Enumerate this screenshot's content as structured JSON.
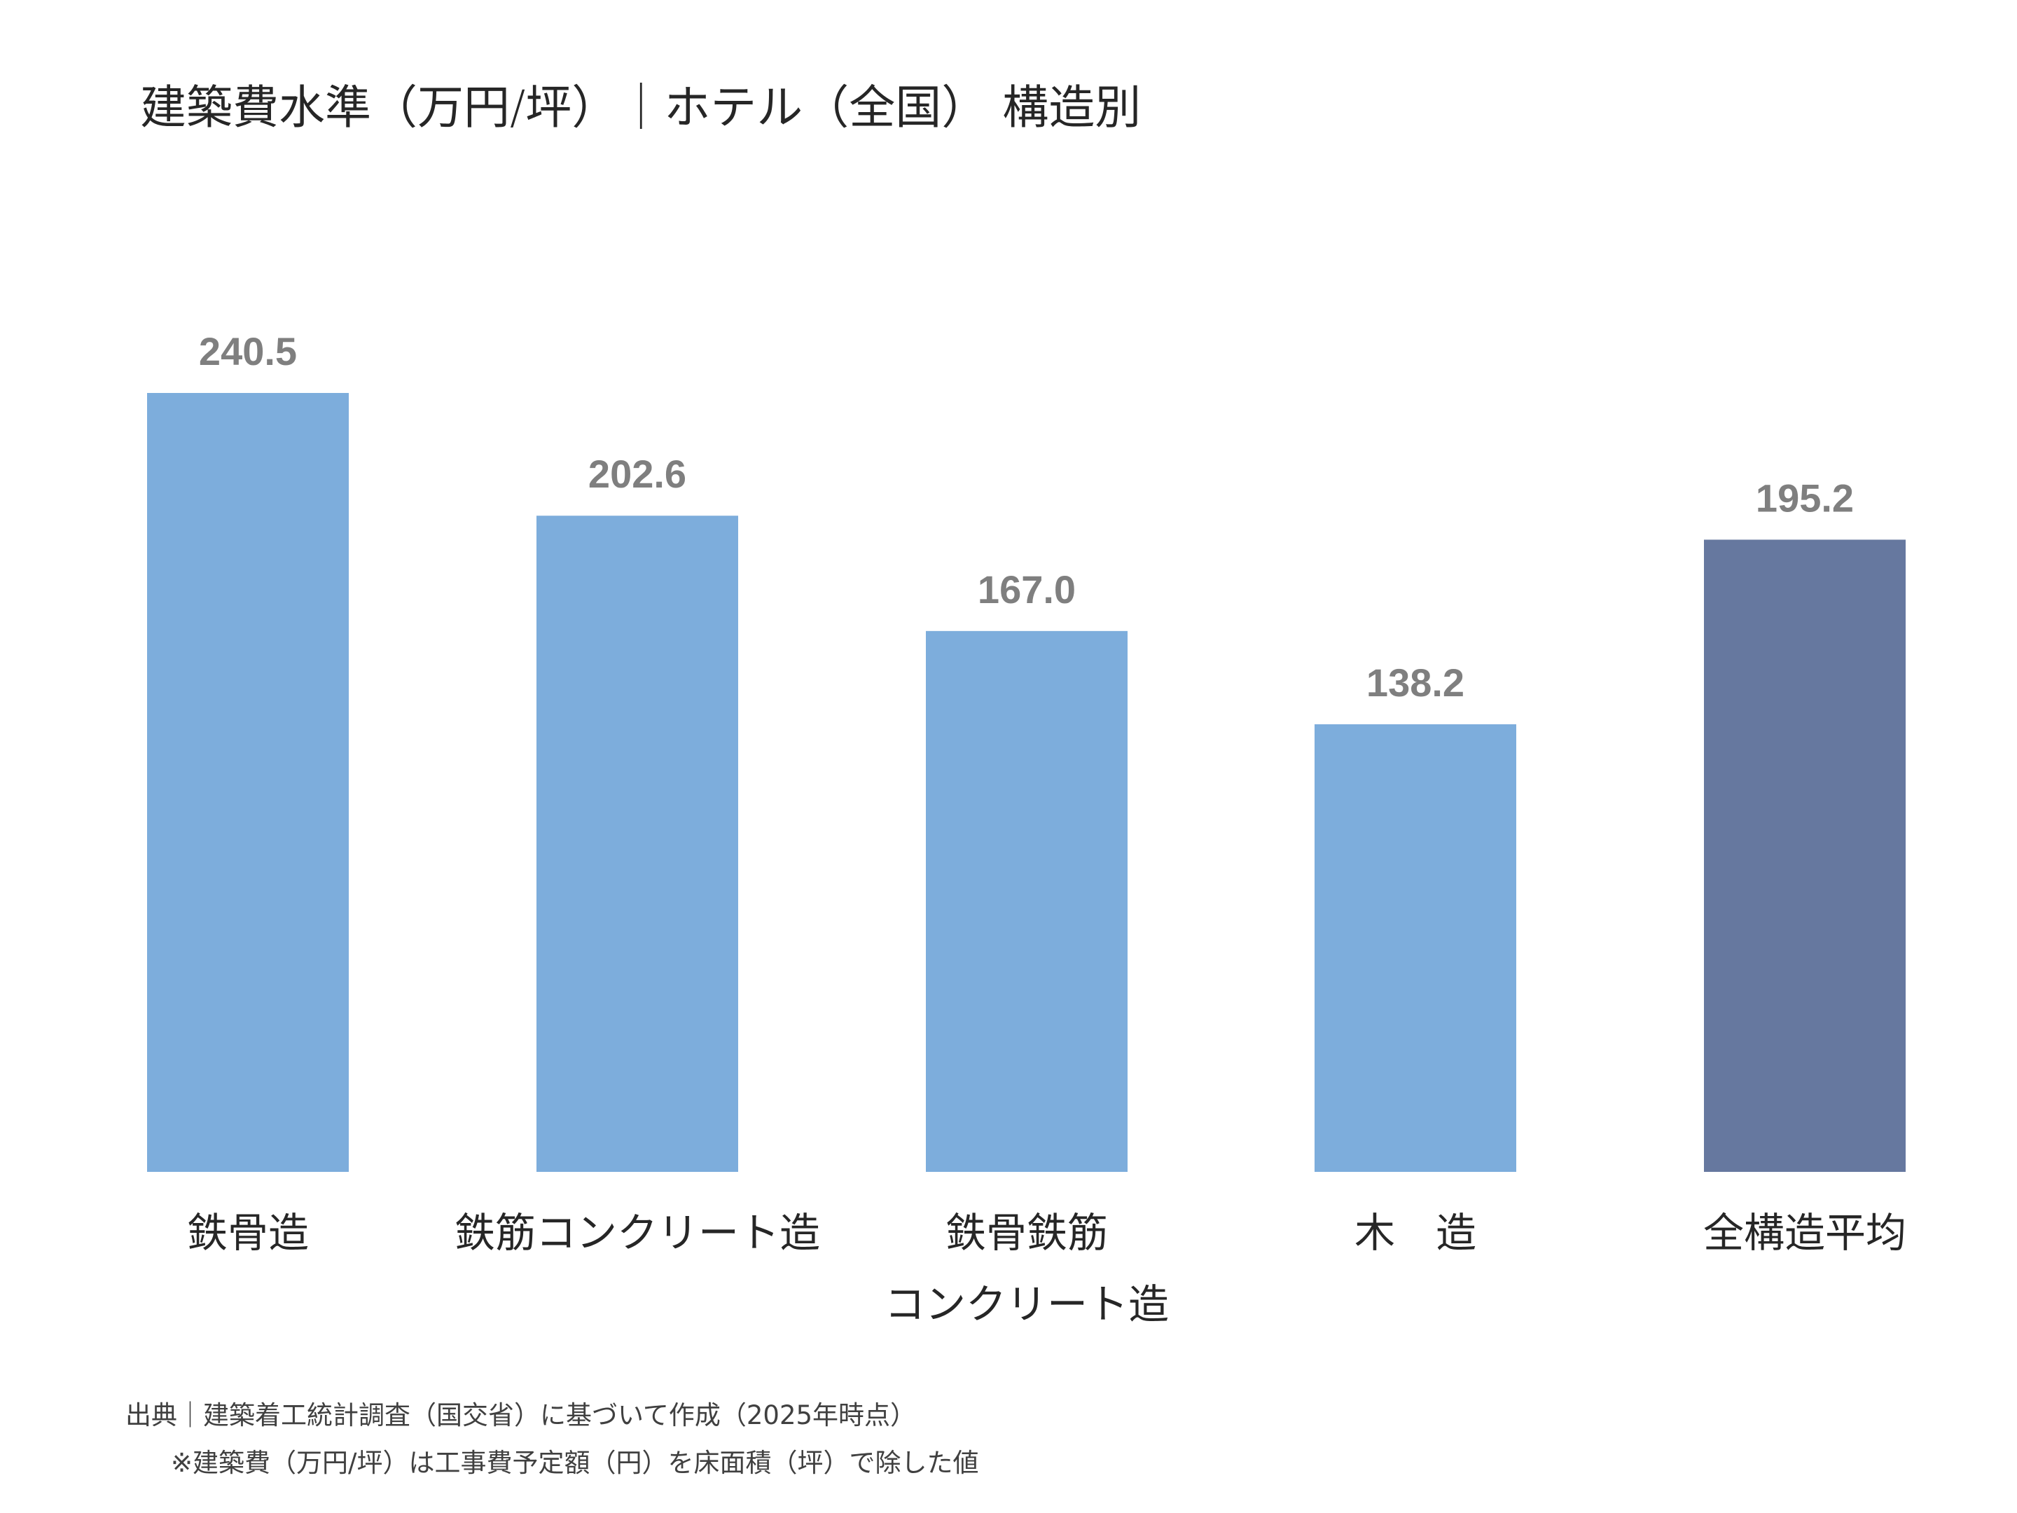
{
  "title": "建築費水準（万円/坪）｜ホテル（全国） 構造別",
  "chart_data": {
    "type": "bar",
    "title": "建築費水準（万円/坪）｜ホテル（全国） 構造別",
    "categories": [
      [
        "鉄骨造"
      ],
      [
        "鉄筋コンクリート造"
      ],
      [
        "鉄骨鉄筋",
        "コンクリート造"
      ],
      [
        "木　造"
      ],
      [
        "全構造平均"
      ]
    ],
    "values": [
      240.5,
      202.6,
      167.0,
      138.2,
      195.2
    ],
    "value_labels": [
      "240.5",
      "202.6",
      "167.0",
      "138.2",
      "195.2"
    ],
    "colors": [
      "#7DADDC",
      "#7DADDC",
      "#7DADDC",
      "#7DADDC",
      "#66789F"
    ],
    "label_color": "#7F7F7F",
    "xlabel": "",
    "ylabel": "",
    "ylim": [
      0,
      240.5
    ],
    "grid": false,
    "legend": "none"
  },
  "footnotes": {
    "source": "出典｜建築着工統計調査（国交省）に基づいて作成（2025年時点）",
    "note": "※建築費（万円/坪）は工事費予定額（円）を床面積（坪）で除した値"
  }
}
